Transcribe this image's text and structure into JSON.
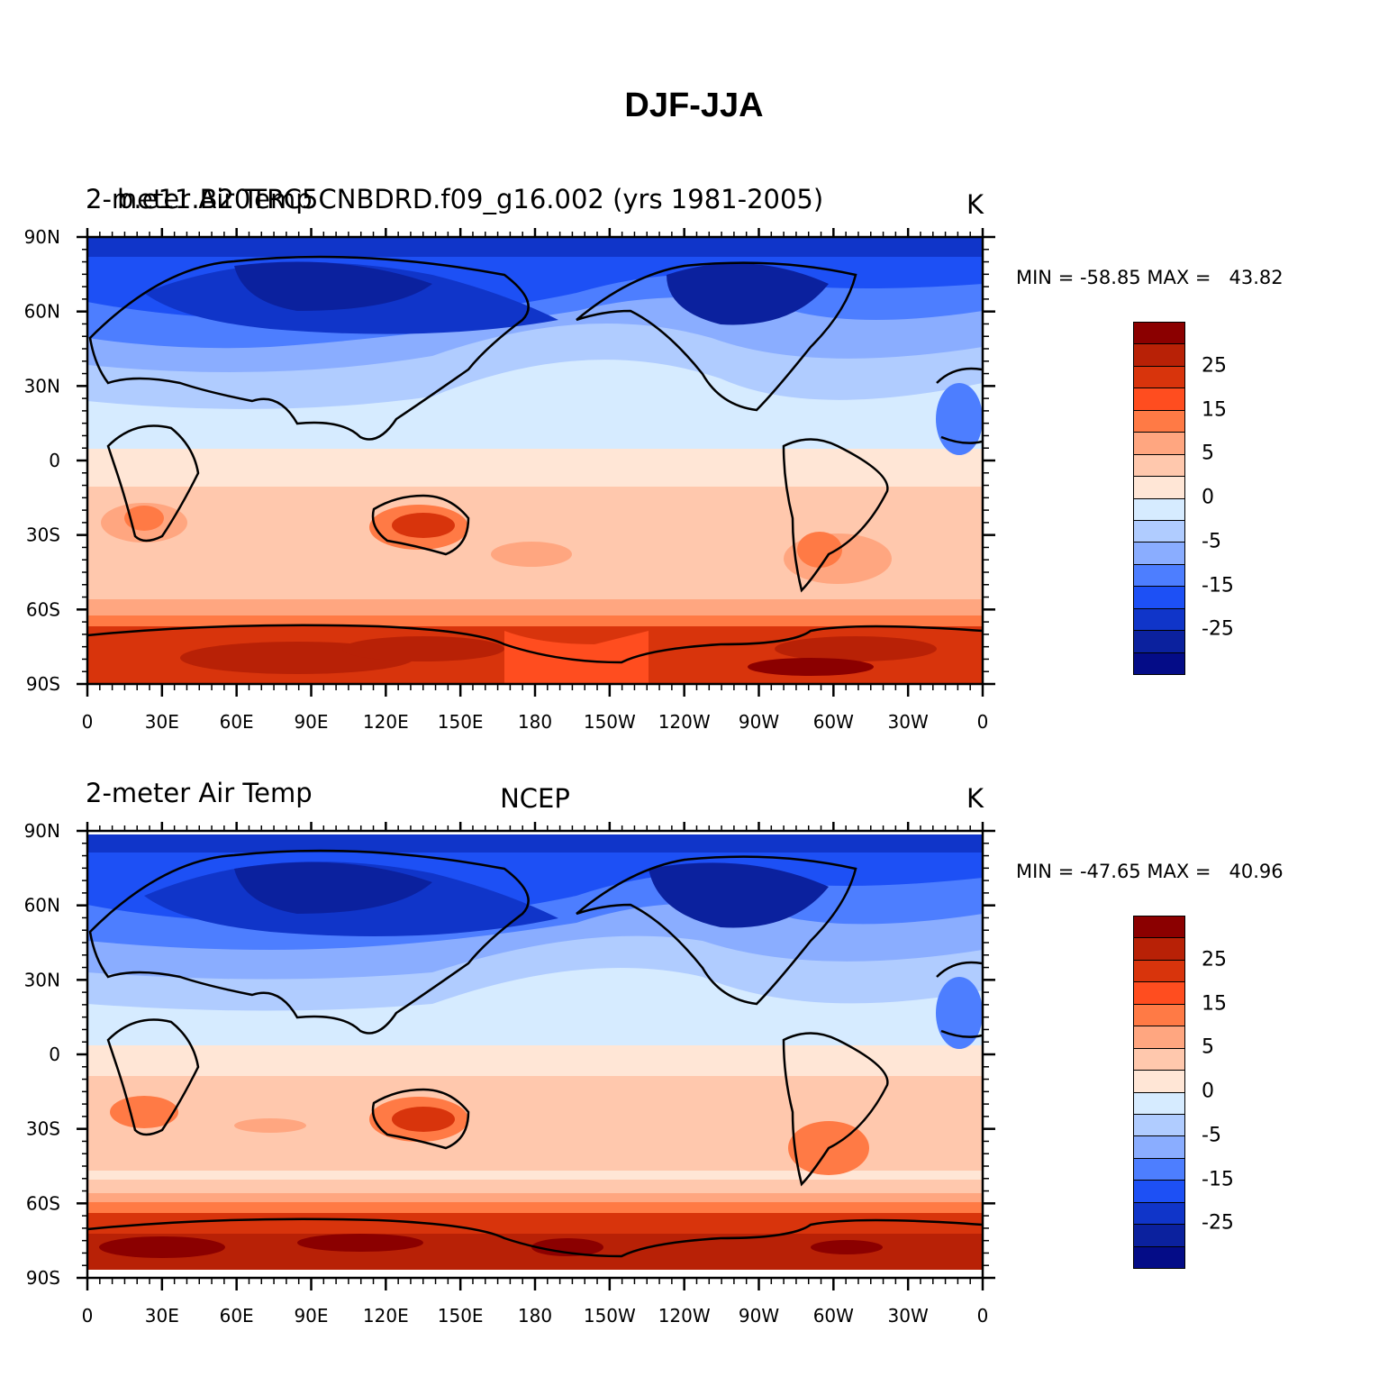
{
  "title": "DJF-JJA",
  "panels": [
    {
      "left_title": "2-meter Air Temp",
      "center_title": "b.e11.B20TRC5CNBDRD.f09_g16.002 (yrs 1981-2005)",
      "units": "K",
      "minmax": "MIN = -58.85 MAX =   43.82"
    },
    {
      "left_title": "2-meter Air Temp",
      "center_title": "NCEP",
      "units": "K",
      "minmax": "MIN = -47.65 MAX =   40.96"
    }
  ],
  "axes": {
    "lat_ticks": [
      "90N",
      "60N",
      "30N",
      "0",
      "30S",
      "60S",
      "90S"
    ],
    "lon_ticks": [
      "0",
      "30E",
      "60E",
      "90E",
      "120E",
      "150E",
      "180",
      "150W",
      "120W",
      "90W",
      "60W",
      "30W",
      "0"
    ]
  },
  "colorbar": {
    "colors": [
      "#8b0000",
      "#b82106",
      "#d8340c",
      "#ff4d1f",
      "#ff7a45",
      "#ffa680",
      "#ffc8ad",
      "#ffe6d6",
      "#d6ebff",
      "#b0ccff",
      "#8aadff",
      "#4d7eff",
      "#1d50f5",
      "#1035c9",
      "#0b219e",
      "#040c87"
    ],
    "labels": [
      "25",
      "15",
      "5",
      "0",
      "-5",
      "-15",
      "-25"
    ],
    "label_after_segment": [
      2,
      4,
      6,
      8,
      10,
      12,
      14
    ]
  },
  "colors": {
    "cold_deep": "#0a1f9a",
    "cold": "#1d50f5",
    "cool": "#8aadff",
    "cool_light": "#d6ebff",
    "neutral_warm": "#ffe6d6",
    "warm": "#ffc8ad",
    "warm_mid": "#ff7a45",
    "hot": "#d8340c",
    "hottest": "#8b0000"
  }
}
